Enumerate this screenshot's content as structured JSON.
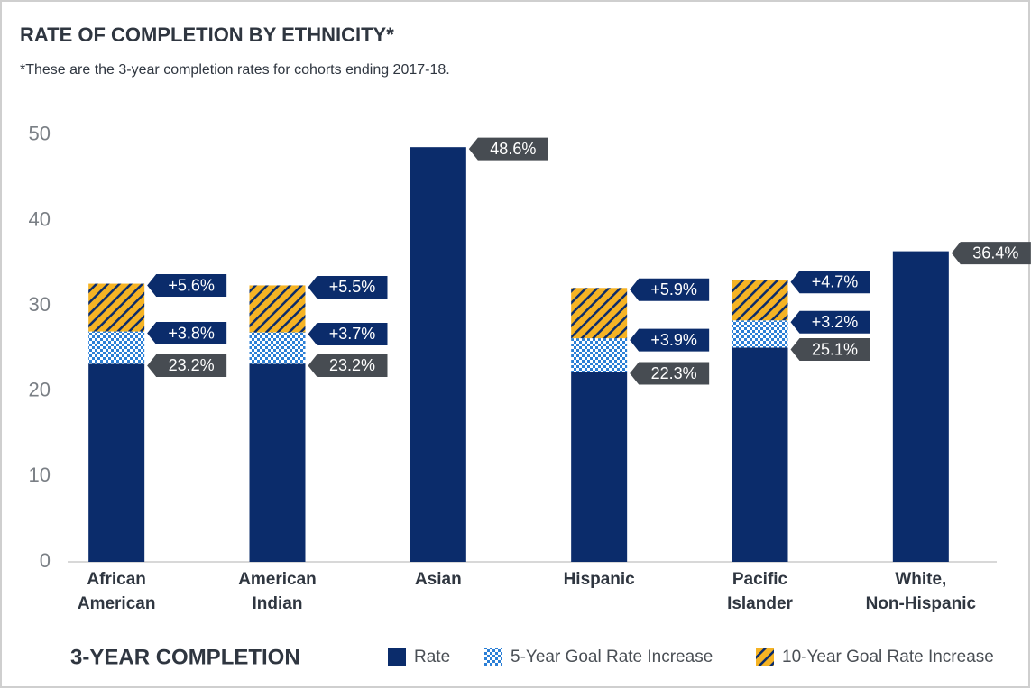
{
  "chart_data": {
    "type": "stacked_bar",
    "title": "RATE OF COMPLETION BY ETHNICITY*",
    "subtitle": "*These are the 3-year completion rates for cohorts ending 2017-18.",
    "legend_title": "3-YEAR COMPLETION",
    "categories": [
      "African American",
      "American Indian",
      "Asian",
      "Hispanic",
      "Pacific Islander",
      "White, Non-Hispanic"
    ],
    "series": [
      {
        "name": "Rate",
        "color": "#0b2c6b",
        "pattern": "solid",
        "label_color": "#474c52",
        "values": [
          23.2,
          23.2,
          48.6,
          22.3,
          25.1,
          36.4
        ],
        "value_labels": [
          "23.2%",
          "23.2%",
          "48.6%",
          "22.3%",
          "25.1%",
          "36.4%"
        ]
      },
      {
        "name": "5-Year Goal Rate Increase",
        "color": "#2b7fd6",
        "pattern": "grid",
        "label_color": "#0b2c6b",
        "values": [
          3.8,
          3.7,
          null,
          3.9,
          3.2,
          null
        ],
        "value_labels": [
          "+3.8%",
          "+3.7%",
          null,
          "+3.9%",
          "+3.2%",
          null
        ]
      },
      {
        "name": "10-Year Goal Rate Increase",
        "color": "#f5b324",
        "pattern": "hatch",
        "label_color": "#0b2c6b",
        "values": [
          5.6,
          5.5,
          null,
          5.9,
          4.7,
          null
        ],
        "value_labels": [
          "+5.6%",
          "+5.5%",
          null,
          "+5.9%",
          "+4.7%",
          null
        ]
      }
    ],
    "ylim": [
      0,
      52
    ],
    "yticks": [
      0,
      10,
      20,
      30,
      40,
      50
    ],
    "grid": false
  }
}
